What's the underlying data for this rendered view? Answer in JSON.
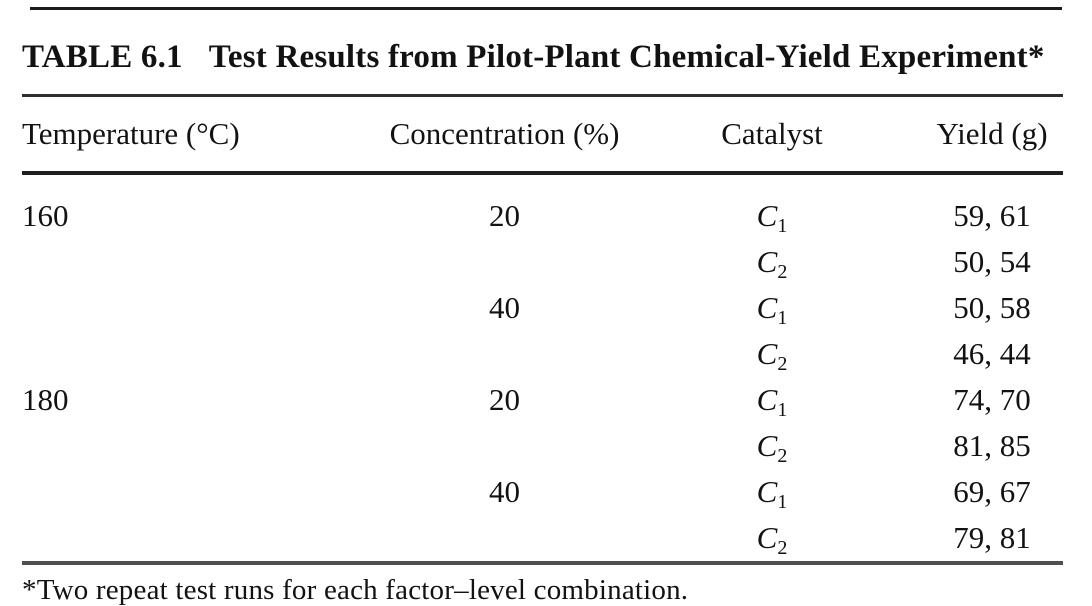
{
  "page": {
    "caption_label": "TABLE 6.1",
    "caption_text": "Test Results from Pilot-Plant Chemical-Yield Experiment*",
    "footnote": "*Two repeat test runs for each factor–level combination."
  },
  "table": {
    "columns": [
      "Temperature (°C)",
      "Concentration (%)",
      "Catalyst",
      "Yield (g)"
    ],
    "rows": [
      {
        "temperature": "160",
        "concentration": "20",
        "catalyst_base": "C",
        "catalyst_sub": "1",
        "yield": "59, 61"
      },
      {
        "temperature": "",
        "concentration": "",
        "catalyst_base": "C",
        "catalyst_sub": "2",
        "yield": "50, 54"
      },
      {
        "temperature": "",
        "concentration": "40",
        "catalyst_base": "C",
        "catalyst_sub": "1",
        "yield": "50, 58"
      },
      {
        "temperature": "",
        "concentration": "",
        "catalyst_base": "C",
        "catalyst_sub": "2",
        "yield": "46, 44"
      },
      {
        "temperature": "180",
        "concentration": "20",
        "catalyst_base": "C",
        "catalyst_sub": "1",
        "yield": "74, 70"
      },
      {
        "temperature": "",
        "concentration": "",
        "catalyst_base": "C",
        "catalyst_sub": "2",
        "yield": "81, 85"
      },
      {
        "temperature": "",
        "concentration": "40",
        "catalyst_base": "C",
        "catalyst_sub": "1",
        "yield": "69, 67"
      },
      {
        "temperature": "",
        "concentration": "",
        "catalyst_base": "C",
        "catalyst_sub": "2",
        "yield": "79, 81"
      }
    ]
  }
}
